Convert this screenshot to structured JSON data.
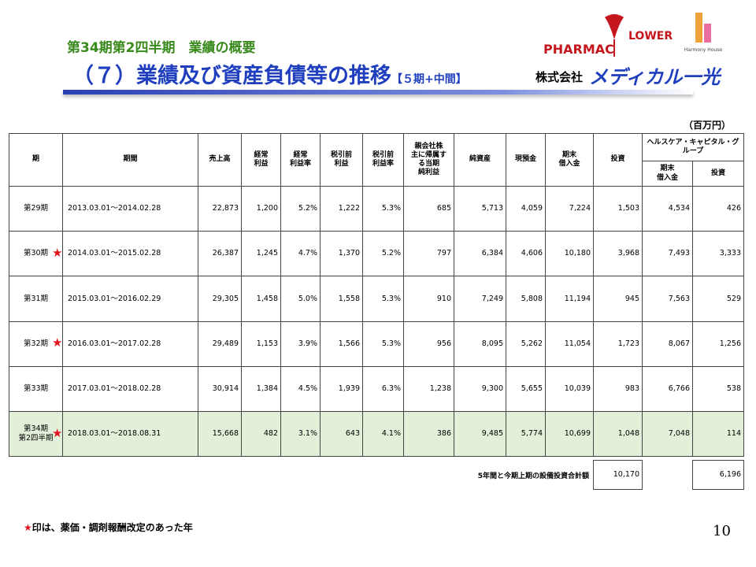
{
  "header": {
    "subtitle": "第34期第2四半期　業績の概要",
    "title": "（７）業績及び資産負債等の推移",
    "title_suffix": "【５期+中間】",
    "company_prefix": "株式会社",
    "company_name": "メディカル一光",
    "logos": [
      "PHARMAC",
      "LOWER",
      "Harmony House"
    ]
  },
  "unit": "（百万円）",
  "table": {
    "columns": [
      [
        "期"
      ],
      [
        "期間"
      ],
      [
        "売上高"
      ],
      [
        "経常",
        "利益"
      ],
      [
        "経常",
        "利益率"
      ],
      [
        "税引前",
        "利益"
      ],
      [
        "税引前",
        "利益率"
      ],
      [
        "親会社株",
        "主に帰属す",
        "る当期",
        "純利益"
      ],
      [
        "純資産"
      ],
      [
        "現預金"
      ],
      [
        "期末",
        "借入金"
      ],
      [
        "投資"
      ],
      [
        "期末",
        "借入金"
      ],
      [
        "投資"
      ]
    ],
    "group_header": [
      "ヘルスケア・キャピタル・グ",
      "ループ"
    ],
    "rows": [
      {
        "period": [
          "第29期"
        ],
        "cells": [
          "2013.03.01～2014.02.28",
          "22,873",
          "1,200",
          "5.2%",
          "1,222",
          "5.3%",
          "685",
          "5,713",
          "4,059",
          "7,224",
          "1,503",
          "4,534",
          "426"
        ]
      },
      {
        "period": [
          "第30期"
        ],
        "mark": "★",
        "cells": [
          "2014.03.01～2015.02.28",
          "26,387",
          "1,245",
          "4.7%",
          "1,370",
          "5.2%",
          "797",
          "6,384",
          "4,606",
          "10,180",
          "3,968",
          "7,493",
          "3,333"
        ]
      },
      {
        "period": [
          "第31期"
        ],
        "cells": [
          "2015.03.01～2016.02.29",
          "29,305",
          "1,458",
          "5.0%",
          "1,558",
          "5.3%",
          "910",
          "7,249",
          "5,808",
          "11,194",
          "945",
          "7,563",
          "529"
        ]
      },
      {
        "period": [
          "第32期"
        ],
        "mark": "★",
        "cells": [
          "2016.03.01～2017.02.28",
          "29,489",
          "1,153",
          "3.9%",
          "1,566",
          "5.3%",
          "956",
          "8,095",
          "5,262",
          "11,054",
          "1,723",
          "8,067",
          "1,256"
        ]
      },
      {
        "period": [
          "第33期"
        ],
        "cells": [
          "2017.03.01～2018.02.28",
          "30,914",
          "1,384",
          "4.5%",
          "1,939",
          "6.3%",
          "1,238",
          "9,300",
          "5,655",
          "10,039",
          "983",
          "6,766",
          "538"
        ]
      },
      {
        "period": [
          "第34期",
          "第2四半期"
        ],
        "mark": "★",
        "cells": [
          "2018.03.01～2018.08.31",
          "15,668",
          "482",
          "3.1%",
          "643",
          "4.1%",
          "386",
          "9,485",
          "5,774",
          "10,699",
          "1,048",
          "7,048",
          "114"
        ]
      }
    ]
  },
  "summary": {
    "label": "5年間と今期上期の設備投資合計額",
    "values": [
      "10,170",
      "6,196"
    ]
  },
  "footnote": {
    "mark": "★",
    "text": "印は、薬価・調剤報酬改定のあった年"
  },
  "page_number": "10"
}
